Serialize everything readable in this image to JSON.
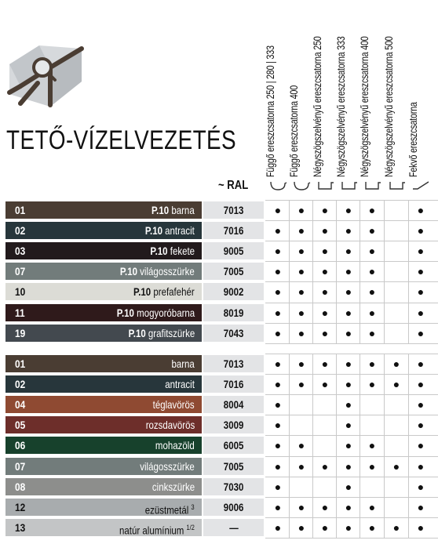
{
  "title": "TETŐ-VÍZELVEZETÉS",
  "ral_header": "~ RAL",
  "columns": [
    {
      "label": "Függő ereszcsatorna 250 | 280 | 333",
      "icon": "round-gutter-icon"
    },
    {
      "label": "Függő ereszcsatorna 400",
      "icon": "round-gutter-icon"
    },
    {
      "label": "Négyszögszelvényű ereszcsatorna 250",
      "icon": "square-gutter-icon"
    },
    {
      "label": "Négyszögszelvényű ereszcsatorna 333",
      "icon": "square-gutter-icon"
    },
    {
      "label": "Négyszögszelvényű ereszcsatorna 400",
      "icon": "square-gutter-icon"
    },
    {
      "label": "Négyszögszelvényű ereszcsatorna 500",
      "icon": "square-gutter-icon"
    },
    {
      "label": "Fekvő ereszcsatorna",
      "icon": "flat-gutter-icon"
    }
  ],
  "dot_symbol": "●",
  "group1": [
    {
      "code": "01",
      "prefix": "P.10",
      "name": "barna",
      "ral": "7013",
      "bg": "#4a3d33",
      "fg": "#ffffff",
      "availability": [
        1,
        1,
        1,
        1,
        1,
        0,
        1
      ]
    },
    {
      "code": "02",
      "prefix": "P.10",
      "name": "antracit",
      "ral": "7016",
      "bg": "#27363b",
      "fg": "#ffffff",
      "availability": [
        1,
        1,
        1,
        1,
        1,
        0,
        1
      ]
    },
    {
      "code": "03",
      "prefix": "P.10",
      "name": "fekete",
      "ral": "9005",
      "bg": "#221a1c",
      "fg": "#ffffff",
      "availability": [
        1,
        1,
        1,
        1,
        1,
        0,
        1
      ]
    },
    {
      "code": "07",
      "prefix": "P.10",
      "name": "világosszürke",
      "ral": "7005",
      "bg": "#727c7b",
      "fg": "#ffffff",
      "availability": [
        1,
        1,
        1,
        1,
        1,
        0,
        1
      ]
    },
    {
      "code": "10",
      "prefix": "P.10",
      "name": "prefafehér",
      "ral": "9002",
      "bg": "#dcdcd6",
      "fg": "#111111",
      "availability": [
        1,
        1,
        1,
        1,
        1,
        0,
        1
      ]
    },
    {
      "code": "11",
      "prefix": "P.10",
      "name": "mogyoróbarna",
      "ral": "8019",
      "bg": "#2f1a1b",
      "fg": "#ffffff",
      "availability": [
        1,
        1,
        1,
        1,
        1,
        0,
        1
      ]
    },
    {
      "code": "19",
      "prefix": "P.10",
      "name": "grafitszürke",
      "ral": "7043",
      "bg": "#43494f",
      "fg": "#ffffff",
      "availability": [
        1,
        1,
        1,
        1,
        1,
        0,
        1
      ]
    }
  ],
  "group2": [
    {
      "code": "01",
      "name": "barna",
      "sup": "",
      "ral": "7013",
      "bg": "#4a3d33",
      "fg": "#ffffff",
      "availability": [
        1,
        1,
        1,
        1,
        1,
        1,
        1
      ]
    },
    {
      "code": "02",
      "name": "antracit",
      "sup": "",
      "ral": "7016",
      "bg": "#27363b",
      "fg": "#ffffff",
      "availability": [
        1,
        1,
        1,
        1,
        1,
        1,
        1
      ]
    },
    {
      "code": "04",
      "name": "téglavörös",
      "sup": "",
      "ral": "8004",
      "bg": "#8f4a32",
      "fg": "#ffffff",
      "availability": [
        1,
        0,
        0,
        1,
        0,
        0,
        1
      ]
    },
    {
      "code": "05",
      "name": "rozsdavörös",
      "sup": "",
      "ral": "3009",
      "bg": "#6d2e2a",
      "fg": "#ffffff",
      "availability": [
        1,
        0,
        0,
        1,
        0,
        0,
        1
      ]
    },
    {
      "code": "06",
      "name": "mohazöld",
      "sup": "",
      "ral": "6005",
      "bg": "#17412c",
      "fg": "#ffffff",
      "availability": [
        1,
        1,
        0,
        1,
        1,
        0,
        1
      ]
    },
    {
      "code": "07",
      "name": "világosszürke",
      "sup": "",
      "ral": "7005",
      "bg": "#727c7b",
      "fg": "#ffffff",
      "availability": [
        1,
        1,
        1,
        1,
        1,
        1,
        1
      ]
    },
    {
      "code": "08",
      "name": "cinkszürke",
      "sup": "",
      "ral": "7030",
      "bg": "#8d8e8c",
      "fg": "#ffffff",
      "availability": [
        1,
        0,
        0,
        1,
        0,
        0,
        1
      ]
    },
    {
      "code": "12",
      "name": "ezüstmetál",
      "sup": "3",
      "ral": "9006",
      "bg": "#a8acae",
      "fg": "#111111",
      "availability": [
        1,
        1,
        1,
        1,
        1,
        0,
        1
      ]
    },
    {
      "code": "13",
      "name": "natúr alumínium",
      "sup": "1/2",
      "ral": "—",
      "bg": "#c3c5c6",
      "fg": "#111111",
      "availability": [
        1,
        1,
        1,
        1,
        1,
        1,
        1
      ]
    }
  ]
}
